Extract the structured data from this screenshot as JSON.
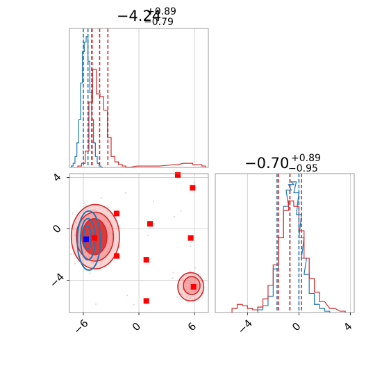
{
  "colors": {
    "blue": "#1f77b4",
    "red": "#d62728",
    "red_fill": "#f08080",
    "marker_red": "#ff0000",
    "marker_blue": "#0000ff"
  },
  "chart_data": [
    {
      "type": "histogram",
      "panel": "x-marginal",
      "title_main": "−4.24",
      "title_sup": "+0.89",
      "title_sub": "−0.79",
      "xlim": [
        -7.5,
        7.5
      ],
      "quantile_lines": {
        "blue": [
          -6.0,
          -5.5,
          -5.1
        ],
        "red": [
          -5.05,
          -4.24,
          -3.35
        ]
      },
      "series": [
        {
          "name": "blue",
          "x": [
            -7.2,
            -7.0,
            -6.8,
            -6.6,
            -6.4,
            -6.2,
            -6.0,
            -5.8,
            -5.6,
            -5.4,
            -5.2,
            -5.0,
            -4.8,
            -4.6,
            -4.4,
            -4.2,
            -4.0
          ],
          "y": [
            0.01,
            0.03,
            0.08,
            0.18,
            0.35,
            0.62,
            0.85,
            0.92,
            0.96,
            0.78,
            0.55,
            0.35,
            0.18,
            0.08,
            0.03,
            0.01,
            0.0
          ]
        },
        {
          "name": "red",
          "x": [
            -6.4,
            -6.0,
            -5.6,
            -5.2,
            -4.8,
            -4.4,
            -4.0,
            -3.6,
            -3.2,
            -2.8,
            -2.4,
            -2.0,
            -1.6,
            -1.2,
            0.0,
            2.0,
            4.0,
            5.0,
            5.6,
            6.0,
            6.6,
            7.0
          ],
          "y": [
            0.01,
            0.03,
            0.12,
            0.48,
            0.72,
            0.54,
            0.52,
            0.42,
            0.22,
            0.08,
            0.04,
            0.02,
            0.01,
            0.0,
            0.01,
            0.01,
            0.02,
            0.03,
            0.03,
            0.02,
            0.02,
            0.01
          ]
        }
      ]
    },
    {
      "type": "histogram",
      "panel": "y-marginal",
      "title_main": "−0.70",
      "title_sup": "+0.89",
      "title_sub": "−0.95",
      "xlim": [
        -6.5,
        4.3
      ],
      "xticks": [
        -4,
        0,
        4
      ],
      "xtick_labels": [
        "−4",
        "0",
        "4"
      ],
      "quantile_lines": {
        "blue": [
          -1.7,
          -0.7,
          0.0
        ],
        "red": [
          -1.6,
          -0.7,
          0.2
        ]
      },
      "series": [
        {
          "name": "blue",
          "x": [
            -3.0,
            -2.6,
            -2.2,
            -1.8,
            -1.4,
            -1.0,
            -0.8,
            -0.6,
            -0.4,
            -0.2,
            0.0,
            0.2,
            0.4,
            0.6,
            1.0,
            1.4,
            1.8,
            2.2
          ],
          "y": [
            0.02,
            0.05,
            0.12,
            0.32,
            0.55,
            0.78,
            0.9,
            0.94,
            0.96,
            0.88,
            0.72,
            0.55,
            0.4,
            0.28,
            0.14,
            0.06,
            0.03,
            0.01
          ]
        },
        {
          "name": "red",
          "x": [
            -5.0,
            -4.6,
            -4.2,
            -3.8,
            -3.4,
            -3.0,
            -2.6,
            -2.2,
            -1.8,
            -1.4,
            -1.0,
            -0.6,
            -0.2,
            0.2,
            0.6,
            1.0,
            1.4,
            1.8,
            2.6,
            3.4
          ],
          "y": [
            0.03,
            0.06,
            0.05,
            0.03,
            0.02,
            0.04,
            0.1,
            0.2,
            0.35,
            0.55,
            0.75,
            0.82,
            0.78,
            0.6,
            0.4,
            0.25,
            0.15,
            0.08,
            0.03,
            0.01
          ]
        }
      ]
    },
    {
      "type": "scatter",
      "panel": "joint",
      "xlim": [
        -7.5,
        7.5
      ],
      "ylim": [
        -6.5,
        4.3
      ],
      "xticks": [
        -6,
        0,
        6
      ],
      "xtick_labels": [
        "−6",
        "0",
        "6"
      ],
      "yticks": [
        -4,
        0,
        4
      ],
      "ytick_labels": [
        "−4",
        "0",
        "4"
      ],
      "red_markers": [
        {
          "x": 4.2,
          "y": 4.2
        },
        {
          "x": 5.8,
          "y": 3.2
        },
        {
          "x": -2.4,
          "y": 1.2
        },
        {
          "x": 1.2,
          "y": 0.4
        },
        {
          "x": 5.6,
          "y": -0.7
        },
        {
          "x": -2.4,
          "y": -2.1
        },
        {
          "x": 0.8,
          "y": -2.4
        },
        {
          "x": 5.9,
          "y": -4.5
        },
        {
          "x": 0.8,
          "y": -5.6
        },
        {
          "x": -4.8,
          "y": -0.7
        }
      ],
      "blue_marker": {
        "x": -5.7,
        "y": -0.8
      },
      "red_contours": [
        {
          "cx": -4.7,
          "cy": -0.6,
          "rx": 2.6,
          "ry": 2.5,
          "level": 1
        },
        {
          "cx": -4.75,
          "cy": -0.6,
          "rx": 2.0,
          "ry": 1.9,
          "level": 2
        },
        {
          "cx": -4.8,
          "cy": -0.6,
          "rx": 1.35,
          "ry": 1.4,
          "level": 3
        },
        {
          "cx": 5.6,
          "cy": -4.5,
          "rx": 1.4,
          "ry": 1.1,
          "level": 1
        },
        {
          "cx": 5.7,
          "cy": -4.4,
          "rx": 0.9,
          "ry": 0.7,
          "level": 2
        }
      ],
      "blue_contours": [
        {
          "cx": -5.4,
          "cy": -0.9,
          "rx": 1.25,
          "ry": 2.3
        },
        {
          "cx": -5.5,
          "cy": -0.8,
          "rx": 0.8,
          "ry": 1.6
        },
        {
          "cx": -5.55,
          "cy": -0.7,
          "rx": 0.4,
          "ry": 0.9
        }
      ]
    }
  ]
}
